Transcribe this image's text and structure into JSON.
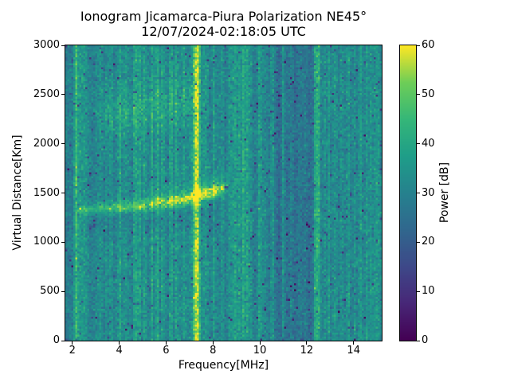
{
  "figure": {
    "title": "Ionogram Jicamarca-Piura Polarization NE45°",
    "subtitle": "12/07/2024-02:18:05 UTC"
  },
  "chart_data": {
    "type": "heatmap",
    "title": "Ionogram Jicamarca-Piura Polarization NE45°",
    "subtitle": "12/07/2024-02:18:05 UTC",
    "xlabel": "Frequency[MHz]",
    "ylabel": "Virtual Distance[Km]",
    "colorbar_label": "Power [dB]",
    "xlim": [
      1.7,
      15.2
    ],
    "ylim": [
      0,
      3000
    ],
    "clim": [
      0,
      60
    ],
    "x_ticks": [
      2,
      4,
      6,
      8,
      10,
      12,
      14
    ],
    "y_ticks": [
      0,
      500,
      1000,
      1500,
      2000,
      2500,
      3000
    ],
    "colorbar_ticks": [
      0,
      10,
      20,
      30,
      40,
      50,
      60
    ],
    "colormap": "viridis",
    "viridis_stops": [
      [
        0.0,
        "#440154"
      ],
      [
        0.125,
        "#482878"
      ],
      [
        0.25,
        "#3e4989"
      ],
      [
        0.375,
        "#31688e"
      ],
      [
        0.5,
        "#26828e"
      ],
      [
        0.625,
        "#1f9e89"
      ],
      [
        0.75,
        "#35b779"
      ],
      [
        0.875,
        "#6ece58"
      ],
      [
        1.0,
        "#fde725"
      ]
    ],
    "background_segments_db": [
      {
        "f0": 1.7,
        "f1": 3.0,
        "power_db": 29.0
      },
      {
        "f0": 3.0,
        "f1": 9.25,
        "power_db": 31.0
      },
      {
        "f0": 9.25,
        "f1": 10.65,
        "power_db": 29.0
      },
      {
        "f0": 10.65,
        "f1": 12.3,
        "power_db": 25.5
      },
      {
        "f0": 12.3,
        "f1": 15.2,
        "power_db": 29.5
      }
    ],
    "rfi_lines": [
      {
        "freq_mhz": 2.17,
        "power_db": 17,
        "width_mhz": 0.07
      },
      {
        "freq_mhz": 2.36,
        "power_db": 8,
        "width_mhz": 0.05
      },
      {
        "freq_mhz": 2.5,
        "power_db": 6,
        "width_mhz": 0.05
      },
      {
        "freq_mhz": 2.63,
        "power_db": 5,
        "width_mhz": 0.05
      },
      {
        "freq_mhz": 3.18,
        "power_db": 4,
        "width_mhz": 0.05
      },
      {
        "freq_mhz": 3.65,
        "power_db": 5,
        "width_mhz": 0.05
      },
      {
        "freq_mhz": 4.03,
        "power_db": 7,
        "width_mhz": 0.05
      },
      {
        "freq_mhz": 4.25,
        "power_db": 6,
        "width_mhz": 0.05
      },
      {
        "freq_mhz": 4.68,
        "power_db": 10,
        "width_mhz": 0.045
      },
      {
        "freq_mhz": 4.87,
        "power_db": 11,
        "width_mhz": 0.045
      },
      {
        "freq_mhz": 5.1,
        "power_db": 7,
        "width_mhz": 0.045
      },
      {
        "freq_mhz": 5.4,
        "power_db": 8,
        "width_mhz": 0.045
      },
      {
        "freq_mhz": 5.62,
        "power_db": 10,
        "width_mhz": 0.045
      },
      {
        "freq_mhz": 5.85,
        "power_db": 7,
        "width_mhz": 0.045
      },
      {
        "freq_mhz": 6.2,
        "power_db": 11,
        "width_mhz": 0.05
      },
      {
        "freq_mhz": 6.45,
        "power_db": 7,
        "width_mhz": 0.045
      },
      {
        "freq_mhz": 6.78,
        "power_db": 5,
        "width_mhz": 0.045
      },
      {
        "freq_mhz": 7.29,
        "power_db": 27,
        "width_mhz": 0.11
      },
      {
        "freq_mhz": 7.66,
        "power_db": 8,
        "width_mhz": 0.05
      },
      {
        "freq_mhz": 8.05,
        "power_db": 5,
        "width_mhz": 0.05
      },
      {
        "freq_mhz": 8.4,
        "power_db": 4,
        "width_mhz": 0.05
      },
      {
        "freq_mhz": 8.75,
        "power_db": 6,
        "width_mhz": 0.05
      },
      {
        "freq_mhz": 8.95,
        "power_db": 8,
        "width_mhz": 0.05
      },
      {
        "freq_mhz": 9.12,
        "power_db": 7,
        "width_mhz": 0.05
      },
      {
        "freq_mhz": 9.3,
        "power_db": 10,
        "width_mhz": 0.055
      },
      {
        "freq_mhz": 9.45,
        "power_db": 9,
        "width_mhz": 0.05
      },
      {
        "freq_mhz": 9.6,
        "power_db": 7,
        "width_mhz": 0.05
      },
      {
        "freq_mhz": 10.0,
        "power_db": 9,
        "width_mhz": 0.07
      },
      {
        "freq_mhz": 10.2,
        "power_db": 4,
        "width_mhz": 0.05
      },
      {
        "freq_mhz": 10.55,
        "power_db": 6,
        "width_mhz": 0.05
      },
      {
        "freq_mhz": 11.0,
        "power_db": 6,
        "width_mhz": 0.05
      },
      {
        "freq_mhz": 11.35,
        "power_db": 3,
        "width_mhz": 0.05
      },
      {
        "freq_mhz": 11.7,
        "power_db": 3,
        "width_mhz": 0.05
      },
      {
        "freq_mhz": 12.0,
        "power_db": 3,
        "width_mhz": 0.05
      },
      {
        "freq_mhz": 12.4,
        "power_db": 13,
        "width_mhz": 0.06
      },
      {
        "freq_mhz": 12.53,
        "power_db": 10,
        "width_mhz": 0.05
      },
      {
        "freq_mhz": 12.75,
        "power_db": 5,
        "width_mhz": 0.05
      },
      {
        "freq_mhz": 12.95,
        "power_db": 6,
        "width_mhz": 0.05
      },
      {
        "freq_mhz": 13.2,
        "power_db": 5,
        "width_mhz": 0.05
      },
      {
        "freq_mhz": 13.5,
        "power_db": 6,
        "width_mhz": 0.05
      },
      {
        "freq_mhz": 13.78,
        "power_db": 6,
        "width_mhz": 0.05
      },
      {
        "freq_mhz": 14.05,
        "power_db": 6,
        "width_mhz": 0.05
      },
      {
        "freq_mhz": 14.3,
        "power_db": 7,
        "width_mhz": 0.05
      },
      {
        "freq_mhz": 14.55,
        "power_db": 7,
        "width_mhz": 0.05
      },
      {
        "freq_mhz": 14.75,
        "power_db": 8,
        "width_mhz": 0.05
      },
      {
        "freq_mhz": 14.95,
        "power_db": 7,
        "width_mhz": 0.05
      },
      {
        "freq_mhz": 15.1,
        "power_db": 6,
        "width_mhz": 0.05
      }
    ],
    "trace": {
      "f_start": 2.3,
      "f_end": 8.7,
      "points_f_km": [
        [
          2.3,
          1320
        ],
        [
          3.0,
          1335
        ],
        [
          4.0,
          1350
        ],
        [
          5.0,
          1365
        ],
        [
          6.0,
          1390
        ],
        [
          6.5,
          1410
        ],
        [
          7.0,
          1435
        ],
        [
          7.5,
          1465
        ],
        [
          8.0,
          1495
        ],
        [
          8.3,
          1520
        ],
        [
          8.7,
          1560
        ]
      ],
      "amplitude_db_f": [
        [
          2.3,
          12
        ],
        [
          3.0,
          14
        ],
        [
          4.0,
          15
        ],
        [
          5.0,
          16
        ],
        [
          6.0,
          17
        ],
        [
          6.8,
          19
        ],
        [
          7.4,
          22
        ],
        [
          8.0,
          24
        ],
        [
          8.35,
          18
        ],
        [
          8.7,
          7
        ]
      ],
      "sigma_km_f": [
        [
          2.3,
          36
        ],
        [
          8.7,
          60
        ]
      ]
    },
    "spread_echo": {
      "f_start": 2.9,
      "f_end": 7.5,
      "km_at_f_start": 2250,
      "km_at_f_end": 2480,
      "sigma_km": 150,
      "amplitude_db": 5.5
    },
    "under_trace_shadow": {
      "f_start": 2.4,
      "f_end": 8.2,
      "km_min": 1000,
      "delta_db": -2.5
    },
    "noise": {
      "std_db": 3.3,
      "column_jitter_db": 1.1,
      "speckle_prob": 0.022,
      "speckle_min_db": 8,
      "speckle_max_db": 25
    },
    "grid": false,
    "legend": null
  }
}
